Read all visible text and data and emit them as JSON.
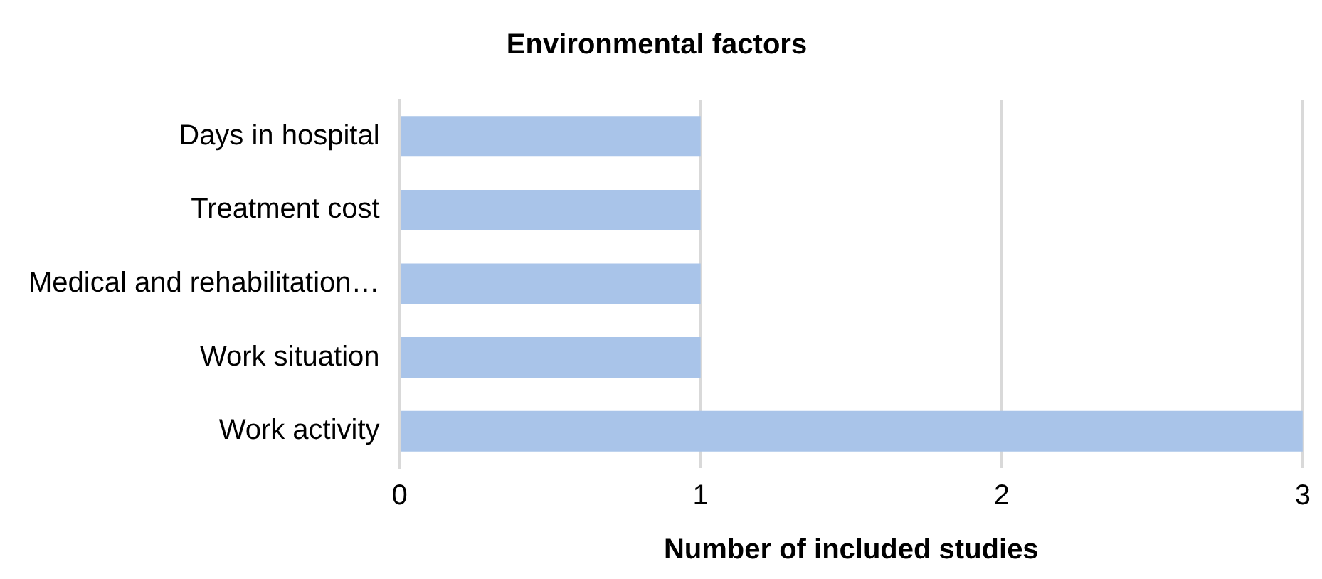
{
  "chart_data": {
    "type": "bar",
    "orientation": "horizontal",
    "title": "Environmental factors",
    "xlabel": "Number of included studies",
    "categories": [
      "Days in hospital",
      "Treatment cost",
      "Medical and rehabilitation…",
      "Work situation",
      "Work activity"
    ],
    "values": [
      1,
      1,
      1,
      1,
      3
    ],
    "color": "#a9c4e9",
    "xlim": [
      0,
      3
    ],
    "xticks": [
      0,
      1,
      2,
      3
    ],
    "grid": "x",
    "legend": false
  }
}
